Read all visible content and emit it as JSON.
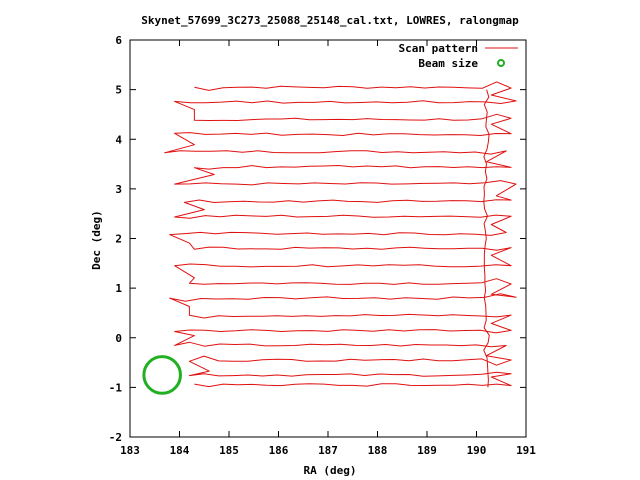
{
  "chart_data": {
    "type": "line",
    "title": "Skynet_57699_3C273_25088_25148_cal.txt, LOWRES, ralongmap",
    "xlabel": "RA (deg)",
    "ylabel": "Dec (deg)",
    "xlim": [
      183,
      191
    ],
    "ylim": [
      -2,
      6
    ],
    "xticks": [
      "183",
      "184",
      "185",
      "186",
      "187",
      "188",
      "189",
      "190",
      "191"
    ],
    "yticks": [
      "-2",
      "-1",
      "0",
      "1",
      "2",
      "3",
      "4",
      "5",
      "6"
    ],
    "legend_position": "top-right",
    "grid": false,
    "colors": {
      "scan": "#e01010",
      "beam": "#22b022"
    },
    "series": [
      {
        "name": "Scan pattern",
        "style": "line",
        "rows": [
          {
            "dec": 5.05,
            "x_start": 184.3,
            "x_end": 190.7
          },
          {
            "dec": 4.75,
            "x_start": 183.9,
            "x_end": 190.8
          },
          {
            "dec": 4.4,
            "x_start": 184.3,
            "x_end": 190.7
          },
          {
            "dec": 4.1,
            "x_start": 183.9,
            "x_end": 190.7
          },
          {
            "dec": 3.75,
            "x_start": 183.7,
            "x_end": 190.6
          },
          {
            "dec": 3.45,
            "x_start": 184.3,
            "x_end": 190.7
          },
          {
            "dec": 3.1,
            "x_start": 183.9,
            "x_end": 190.8
          },
          {
            "dec": 2.75,
            "x_start": 184.1,
            "x_end": 190.7
          },
          {
            "dec": 2.45,
            "x_start": 183.9,
            "x_end": 190.7
          },
          {
            "dec": 2.1,
            "x_start": 183.8,
            "x_end": 190.6
          },
          {
            "dec": 1.8,
            "x_start": 184.3,
            "x_end": 190.7
          },
          {
            "dec": 1.45,
            "x_start": 183.9,
            "x_end": 190.7
          },
          {
            "dec": 1.1,
            "x_start": 184.2,
            "x_end": 190.7
          },
          {
            "dec": 0.8,
            "x_start": 183.8,
            "x_end": 190.8
          },
          {
            "dec": 0.45,
            "x_start": 184.2,
            "x_end": 190.7
          },
          {
            "dec": 0.15,
            "x_start": 183.9,
            "x_end": 190.7
          },
          {
            "dec": -0.15,
            "x_start": 183.9,
            "x_end": 190.6
          },
          {
            "dec": -0.45,
            "x_start": 184.2,
            "x_end": 190.7
          },
          {
            "dec": -0.75,
            "x_start": 184.2,
            "x_end": 190.7
          },
          {
            "dec": -0.95,
            "x_start": 184.3,
            "x_end": 190.7
          }
        ]
      },
      {
        "name": "Beam size",
        "style": "circle",
        "center": {
          "ra": 183.65,
          "dec": -0.75
        },
        "radius_deg": 0.37
      }
    ]
  }
}
